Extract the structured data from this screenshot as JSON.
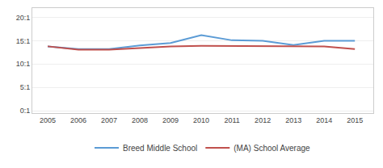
{
  "chart_data": {
    "type": "line",
    "x": [
      2005,
      2006,
      2007,
      2008,
      2009,
      2010,
      2011,
      2012,
      2013,
      2014,
      2015
    ],
    "series": [
      {
        "name": "Breed Middle School",
        "color": "#5b9bd5",
        "values": [
          13.8,
          13.2,
          13.2,
          14.0,
          14.5,
          16.2,
          15.1,
          15.0,
          14.1,
          15.0,
          15.0
        ]
      },
      {
        "name": "(MA) School Average",
        "color": "#c0504d",
        "values": [
          13.8,
          13.1,
          13.1,
          13.5,
          13.8,
          13.9,
          13.9,
          13.9,
          13.8,
          13.8,
          13.2
        ]
      }
    ],
    "xlim": [
      2004.5,
      2015.6
    ],
    "xticks": [
      2005,
      2006,
      2007,
      2008,
      2009,
      2010,
      2011,
      2012,
      2013,
      2014,
      2015
    ],
    "ylim": [
      -0.5,
      22
    ],
    "yticks": [
      {
        "value": 0,
        "label": "0:1"
      },
      {
        "value": 5,
        "label": "5:1"
      },
      {
        "value": 10,
        "label": "10:1"
      },
      {
        "value": 15,
        "label": "15:1"
      },
      {
        "value": 20,
        "label": "20:1"
      }
    ],
    "grid": "y",
    "legend": "bottom"
  }
}
